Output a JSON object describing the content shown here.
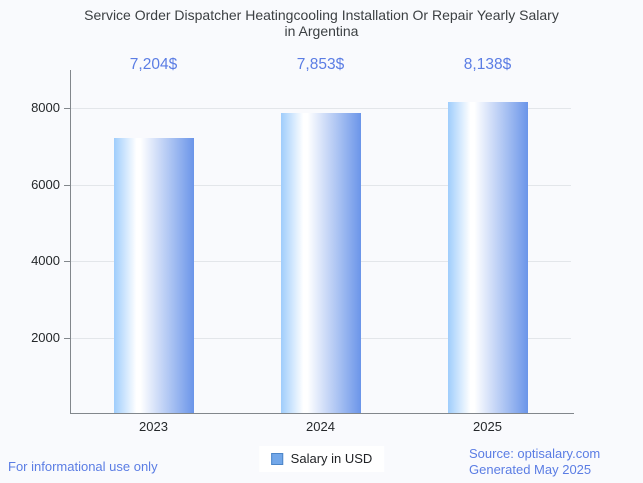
{
  "header": {
    "title_line1": "Service Order Dispatcher Heatingcooling Installation Or Repair Yearly Salary",
    "title_line2": "in Argentina"
  },
  "chart_data": {
    "type": "bar",
    "title": "Service Order Dispatcher Heatingcooling Installation Or Repair Yearly Salary in Argentina",
    "categories": [
      "2023",
      "2024",
      "2025"
    ],
    "series": [
      {
        "name": "Salary in USD",
        "values": [
          7204,
          7853,
          8138
        ]
      }
    ],
    "value_labels": [
      "7,204$",
      "7,853$",
      "8,138$"
    ],
    "xlabel": "",
    "ylabel": "",
    "ylim": [
      0,
      9000
    ],
    "yticks": [
      2000,
      4000,
      6000,
      8000
    ],
    "grid": true,
    "legend_position": "bottom"
  },
  "legend": {
    "label": "Salary in USD"
  },
  "footer": {
    "left_note": "For informational use only",
    "source": "Source: optisalary.com",
    "generated": "Generated May 2025"
  },
  "colors": {
    "background": "#f9fafd",
    "title_text": "#3c4043",
    "tick_text": "#25282b",
    "accent_text": "#5b7de4",
    "gridline": "#e3e6ea",
    "axis_line": "#82878c",
    "bar_gradient_left": "#9fcdfc",
    "bar_gradient_mid": "#ffffff",
    "bar_gradient_right": "#6b95e9",
    "legend_marker_fill": "#72a7e9",
    "legend_marker_border": "#4d86c8"
  }
}
